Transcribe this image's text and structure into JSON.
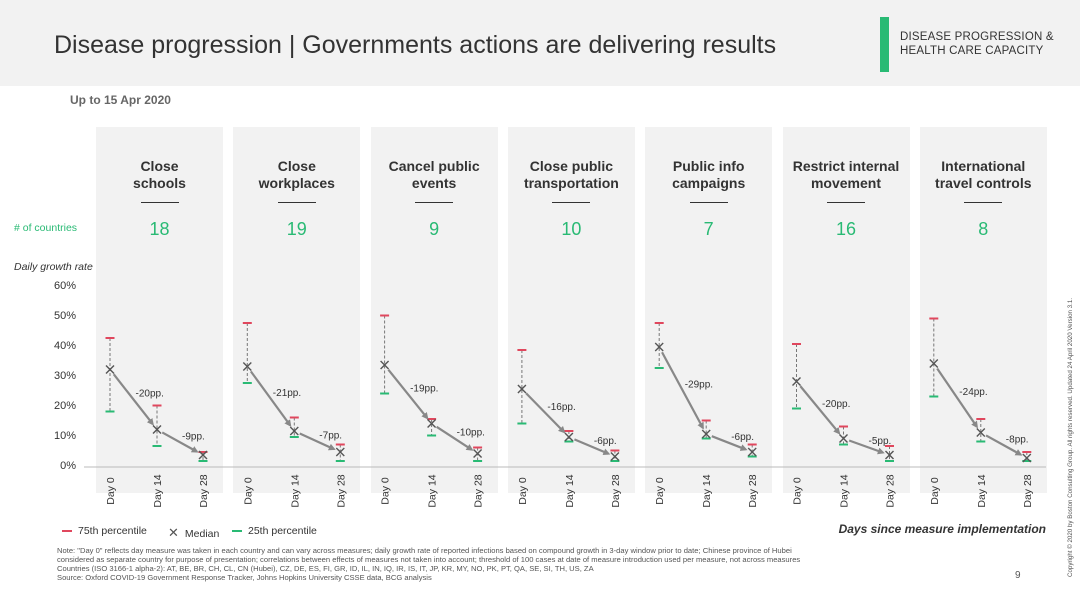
{
  "header": {
    "title": "Disease progression | Governments actions are delivering results",
    "section_label_line1": "DISEASE PROGRESSION &",
    "section_label_line2": "HEALTH CARE CAPACITY",
    "subtitle": "Up to 15 Apr 2020"
  },
  "colors": {
    "accent": "#29ba74",
    "p75": "#e0475d",
    "median": "#555555",
    "p25": "#29ba74",
    "panel": "#f2f2f2"
  },
  "labels": {
    "count_label": "# of countries",
    "growth_label": "Daily growth rate",
    "xaxis_title": "Days since measure implementation"
  },
  "legend": {
    "p75": "75th percentile",
    "median": "Median",
    "p25": "25th percentile",
    "median_icon": "x-mark-icon"
  },
  "chart_data": {
    "type": "scatter",
    "y_axis": {
      "ticks": [
        "60%",
        "50%",
        "40%",
        "30%",
        "20%",
        "10%",
        "0%"
      ],
      "ylim": [
        0,
        60
      ],
      "unit": "%"
    },
    "x_categories": [
      "Day 0",
      "Day 14",
      "Day 28"
    ],
    "series_names": [
      "75th percentile",
      "Median",
      "25th percentile"
    ],
    "measures": [
      {
        "name_line1": "Close",
        "name_line2": "schools",
        "countries": "18",
        "p75": [
          43,
          20.5,
          5
        ],
        "median": [
          32.5,
          12.5,
          4
        ],
        "p25": [
          18.5,
          7,
          2
        ],
        "change_labels": [
          "-20pp.",
          "-9pp."
        ]
      },
      {
        "name_line1": "Close",
        "name_line2": "workplaces",
        "countries": "19",
        "p75": [
          48,
          16.5,
          7.5
        ],
        "median": [
          33.5,
          12,
          5
        ],
        "p25": [
          28,
          10,
          2
        ],
        "change_labels": [
          "-21pp.",
          "-7pp."
        ]
      },
      {
        "name_line1": "Cancel public",
        "name_line2": "events",
        "countries": "9",
        "p75": [
          50.5,
          16,
          6.5
        ],
        "median": [
          34,
          14.5,
          4.5
        ],
        "p25": [
          24.5,
          10.5,
          2
        ],
        "change_labels": [
          "-19pp.",
          "-10pp."
        ]
      },
      {
        "name_line1": "Close public",
        "name_line2": "transportation",
        "countries": "10",
        "p75": [
          39,
          12,
          5.5
        ],
        "median": [
          26,
          10,
          3.5
        ],
        "p25": [
          14.5,
          8.5,
          2
        ],
        "change_labels": [
          "-16pp.",
          "-6pp."
        ]
      },
      {
        "name_line1": "Public info",
        "name_line2": "campaigns",
        "countries": "7",
        "p75": [
          48,
          15.5,
          7.5
        ],
        "median": [
          40,
          11,
          5
        ],
        "p25": [
          33,
          9.5,
          3.5
        ],
        "change_labels": [
          "-29pp.",
          "-6pp."
        ]
      },
      {
        "name_line1": "Restrict internal",
        "name_line2": "movement",
        "countries": "16",
        "p75": [
          41,
          13.5,
          7
        ],
        "median": [
          28.5,
          9.5,
          4
        ],
        "p25": [
          19.5,
          7.5,
          2
        ],
        "change_labels": [
          "-20pp.",
          "-5pp."
        ]
      },
      {
        "name_line1": "International",
        "name_line2": "travel controls",
        "countries": "8",
        "p75": [
          49.5,
          16,
          5
        ],
        "median": [
          34.5,
          11.5,
          3
        ],
        "p25": [
          23.5,
          8.5,
          2
        ],
        "change_labels": [
          "-24pp.",
          "-8pp."
        ]
      }
    ]
  },
  "footer": {
    "note1": "Note: \"Day 0\" reflects day measure was taken in each country and can vary across measures; daily growth rate of reported infections based on compound growth in 3-day window prior to date; Chinese province of Hubei",
    "note2": "considered as separate country for purpose of presentation; correlations between effects of measures not taken into account; threshold of 100 cases at date of measure introduction used per measure, not across measures",
    "note3": "Countries (ISO 3166-1 alpha-2): AT, BE, BR, CH, CL, CN (Hubei), CZ, DE, ES, FI, GR, ID, IL, IN, IQ, IR, IS, IT, JP, KR, MY, NO, PK, PT, QA, SE, SI, TH, US, ZA",
    "source": "Source: Oxford COVID-19 Government Response Tracker, Johns Hopkins University CSSE data, BCG analysis",
    "page_number": "9",
    "copyright": "Copyright © 2020 by Boston Consulting Group. All rights reserved.  Updated 24 April 2020 Version 3.1."
  }
}
